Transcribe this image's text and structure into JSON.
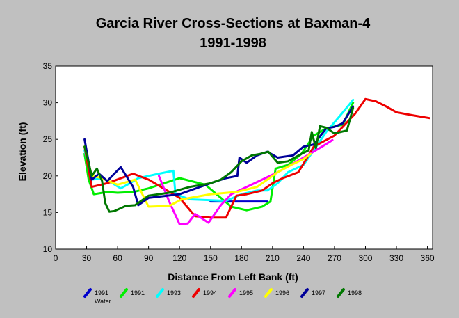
{
  "chart_data": {
    "type": "line",
    "title": "Garcia River Cross-Sections at Baxman-4",
    "subtitle": "1991-1998",
    "xlabel": "Distance From Left Bank (ft)",
    "ylabel": "Elevation (ft)",
    "xlim": [
      0,
      365
    ],
    "ylim": [
      10,
      35
    ],
    "xticks": [
      0,
      30,
      60,
      90,
      120,
      150,
      180,
      210,
      240,
      270,
      300,
      330,
      360
    ],
    "yticks": [
      10,
      15,
      20,
      25,
      30,
      35
    ],
    "grid": false,
    "legend_position": "bottom",
    "colors": {
      "background": "#c0c0c0",
      "plot_area": "#ffffff"
    },
    "series": [
      {
        "name": "1991",
        "sublabel": "Water",
        "color": "#0000cc",
        "points": [
          [
            150,
            16.5
          ],
          [
            180,
            16.5
          ],
          [
            205,
            16.5
          ]
        ]
      },
      {
        "name": "1991",
        "color": "#00ee00",
        "points": [
          [
            28,
            23.0
          ],
          [
            32,
            19.5
          ],
          [
            37,
            17.5
          ],
          [
            50,
            17.8
          ],
          [
            60,
            17.7
          ],
          [
            75,
            17.8
          ],
          [
            90,
            18.3
          ],
          [
            120,
            19.7
          ],
          [
            145,
            18.8
          ],
          [
            160,
            17.0
          ],
          [
            170,
            15.8
          ],
          [
            185,
            15.3
          ],
          [
            200,
            15.8
          ],
          [
            208,
            16.5
          ],
          [
            213,
            21.0
          ],
          [
            225,
            21.5
          ],
          [
            238,
            23.0
          ],
          [
            250,
            25.5
          ],
          [
            262,
            26.5
          ],
          [
            278,
            27.0
          ],
          [
            288,
            30.0
          ]
        ]
      },
      {
        "name": "1993",
        "color": "#00ffff",
        "points": [
          [
            28,
            23.5
          ],
          [
            35,
            19.5
          ],
          [
            45,
            19.7
          ],
          [
            55,
            19.0
          ],
          [
            63,
            18.3
          ],
          [
            72,
            19.0
          ],
          [
            80,
            19.7
          ],
          [
            90,
            20.0
          ],
          [
            100,
            20.3
          ],
          [
            114,
            20.7
          ],
          [
            116,
            17.5
          ],
          [
            130,
            16.8
          ],
          [
            165,
            16.6
          ],
          [
            180,
            17.5
          ],
          [
            195,
            18.0
          ],
          [
            205,
            18.0
          ],
          [
            215,
            19.0
          ],
          [
            225,
            20.5
          ],
          [
            240,
            21.5
          ],
          [
            250,
            23.5
          ],
          [
            262,
            26.0
          ],
          [
            280,
            29.0
          ],
          [
            288,
            30.4
          ]
        ]
      },
      {
        "name": "1994",
        "color": "#ee0000",
        "points": [
          [
            28,
            24.0
          ],
          [
            35,
            18.5
          ],
          [
            50,
            19.0
          ],
          [
            75,
            20.3
          ],
          [
            90,
            19.5
          ],
          [
            120,
            17.0
          ],
          [
            135,
            14.5
          ],
          [
            150,
            14.3
          ],
          [
            165,
            14.3
          ],
          [
            175,
            17.3
          ],
          [
            185,
            17.5
          ],
          [
            200,
            18.0
          ],
          [
            210,
            19.0
          ],
          [
            220,
            19.7
          ],
          [
            235,
            20.5
          ],
          [
            250,
            24.0
          ],
          [
            270,
            25.5
          ],
          [
            290,
            28.5
          ],
          [
            300,
            30.5
          ],
          [
            310,
            30.2
          ],
          [
            320,
            29.5
          ],
          [
            330,
            28.7
          ],
          [
            345,
            28.3
          ],
          [
            362,
            27.9
          ]
        ]
      },
      {
        "name": "1995",
        "color": "#ff00ff",
        "points": [
          [
            100,
            20.0
          ],
          [
            110,
            16.5
          ],
          [
            120,
            13.4
          ],
          [
            128,
            13.5
          ],
          [
            135,
            14.8
          ],
          [
            148,
            13.6
          ],
          [
            160,
            16.0
          ],
          [
            170,
            17.5
          ],
          [
            185,
            18.5
          ],
          [
            200,
            19.5
          ],
          [
            215,
            20.5
          ],
          [
            240,
            22.5
          ],
          [
            258,
            24.0
          ],
          [
            268,
            24.9
          ]
        ]
      },
      {
        "name": "1996",
        "color": "#ffff00",
        "points": [
          [
            28,
            24.0
          ],
          [
            35,
            20.0
          ],
          [
            42,
            19.8
          ],
          [
            60,
            18.8
          ],
          [
            77,
            19.5
          ],
          [
            90,
            15.8
          ],
          [
            110,
            15.9
          ],
          [
            122,
            16.8
          ],
          [
            150,
            17.5
          ],
          [
            175,
            17.8
          ],
          [
            195,
            18.5
          ],
          [
            205,
            19.5
          ],
          [
            215,
            20.5
          ],
          [
            228,
            21.5
          ],
          [
            240,
            22.3
          ],
          [
            247,
            23.0
          ]
        ]
      },
      {
        "name": "1997",
        "color": "#000099",
        "points": [
          [
            28,
            25.0
          ],
          [
            35,
            19.5
          ],
          [
            42,
            20.3
          ],
          [
            50,
            19.3
          ],
          [
            63,
            21.2
          ],
          [
            75,
            18.5
          ],
          [
            80,
            16.0
          ],
          [
            90,
            17.0
          ],
          [
            120,
            17.5
          ],
          [
            150,
            19.0
          ],
          [
            165,
            19.7
          ],
          [
            176,
            20.0
          ],
          [
            178,
            22.5
          ],
          [
            185,
            21.8
          ],
          [
            195,
            22.8
          ],
          [
            205,
            23.3
          ],
          [
            215,
            22.5
          ],
          [
            230,
            22.8
          ],
          [
            240,
            24.0
          ],
          [
            250,
            24.3
          ],
          [
            262,
            26.5
          ],
          [
            270,
            26.7
          ],
          [
            278,
            27.2
          ],
          [
            288,
            29.5
          ]
        ]
      },
      {
        "name": "1998",
        "color": "#007700",
        "points": [
          [
            28,
            24.0
          ],
          [
            35,
            20.0
          ],
          [
            40,
            21.0
          ],
          [
            45,
            19.3
          ],
          [
            48,
            16.3
          ],
          [
            52,
            15.1
          ],
          [
            57,
            15.2
          ],
          [
            68,
            15.9
          ],
          [
            77,
            16.0
          ],
          [
            90,
            17.3
          ],
          [
            110,
            17.7
          ],
          [
            130,
            18.5
          ],
          [
            150,
            19.0
          ],
          [
            160,
            19.5
          ],
          [
            170,
            20.5
          ],
          [
            180,
            22.0
          ],
          [
            190,
            22.8
          ],
          [
            198,
            23.0
          ],
          [
            206,
            23.3
          ],
          [
            215,
            21.8
          ],
          [
            225,
            22.0
          ],
          [
            238,
            23.0
          ],
          [
            245,
            23.5
          ],
          [
            248,
            26.0
          ],
          [
            252,
            23.8
          ],
          [
            256,
            26.8
          ],
          [
            262,
            26.6
          ],
          [
            270,
            25.8
          ],
          [
            282,
            26.2
          ],
          [
            288,
            29.3
          ]
        ]
      }
    ]
  }
}
